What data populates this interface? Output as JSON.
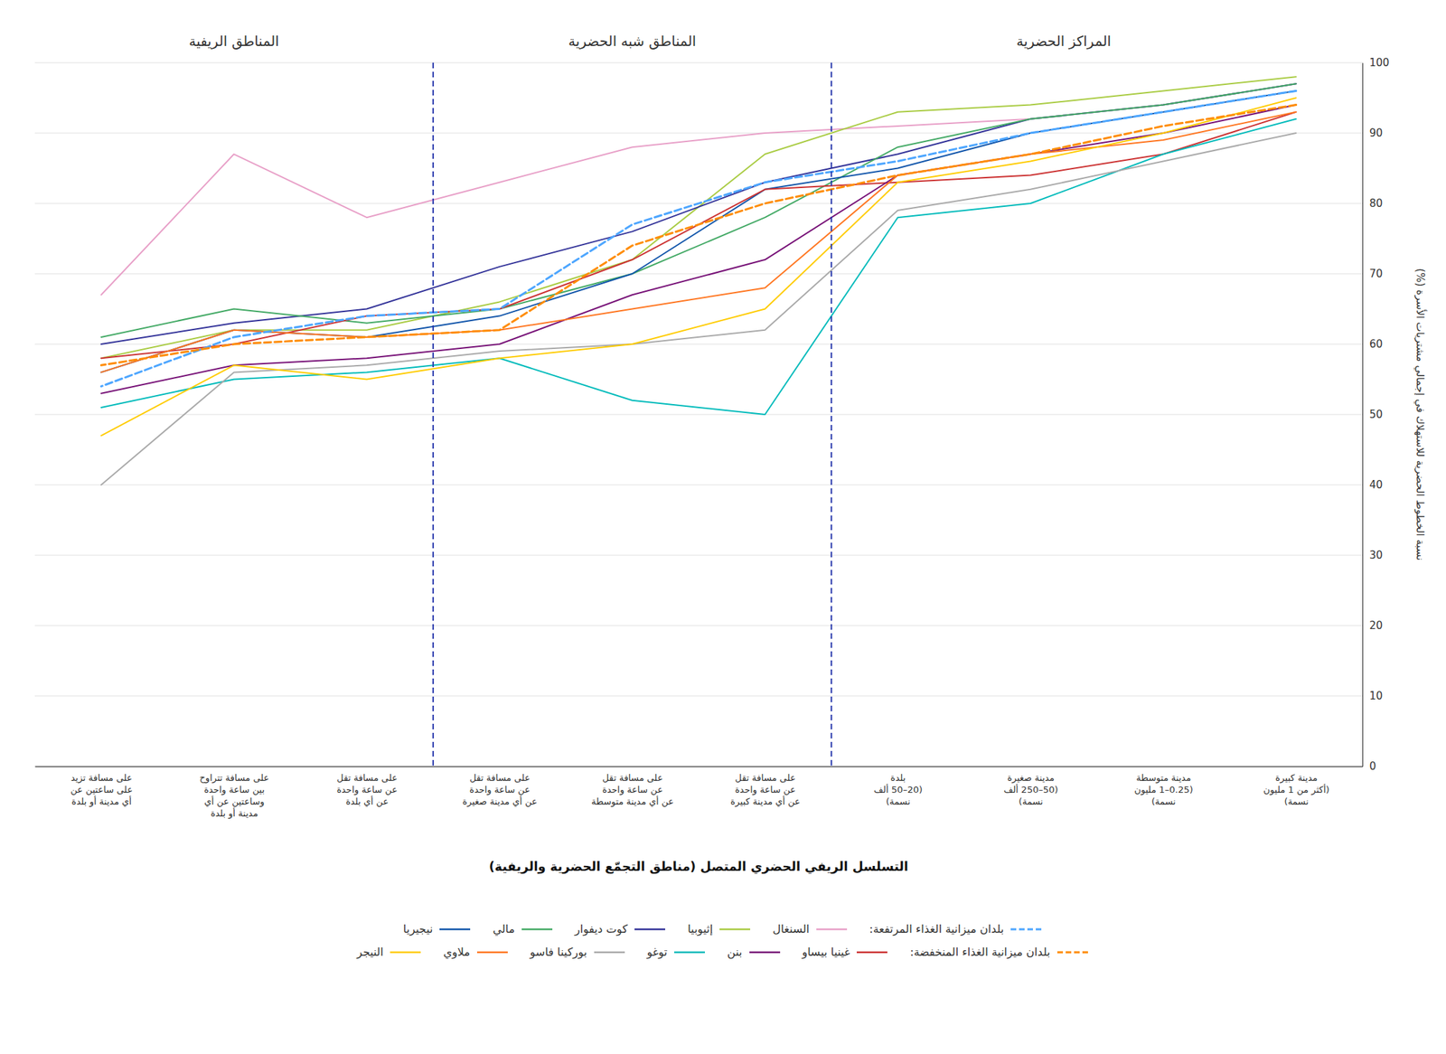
{
  "chart_data": {
    "type": "line",
    "xlabel": "التسلسل الريفي الحضري المتصل  (مناطق التجمّع الحضرية والريفية)",
    "ylabel": "نسبة الخطوط الحضرية للاستهلاك في إجمالي مشتريات الأسرة (%)",
    "categories": [
      "مدينة كبيرة\n(أكثر من 1 مليون\nنسمة)",
      "مدينة متوسطة\n(0.25–1 مليون\nنسمة)",
      "مدينة صغيرة\n(50–250 ألف\nنسمة)",
      "بلدة\n(20–50 ألف\nنسمة)",
      "على مسافة تقل\nعن ساعة واحدة\nعن أي مدينة كبيرة",
      "على مسافة تقل\nعن ساعة واحدة\nعن أي مدينة متوسطة",
      "على مسافة تقل\nعن ساعة واحدة\nعن أي مدينة صغيرة",
      "على مسافة تقل\nعن ساعة واحدة\nعن أي بلدة",
      "على مسافة تتراوح\nبين ساعة واحدة\nوساعتين عن أي\nمدينة أو بلدة",
      "على مسافة تزيد\nعلى ساعتين عن\nأي مدينة أو بلدة"
    ],
    "series": [
      {
        "name": "بلدان ميزانية الغذاء المرتفعة:",
        "color": "#4DA6FF",
        "line_style": "dashed",
        "values": [
          96,
          93,
          90,
          86,
          83,
          77,
          65,
          64,
          61,
          54
        ]
      },
      {
        "name": "السنغال",
        "color": "#E8A0C8",
        "line_style": "solid",
        "values": [
          97,
          94,
          92,
          91,
          90,
          88,
          83,
          78,
          87,
          67
        ]
      },
      {
        "name": "إثيوبيا",
        "color": "#AACC44",
        "line_style": "solid",
        "values": [
          98,
          96,
          94,
          93,
          87,
          72,
          66,
          62,
          62,
          58
        ]
      },
      {
        "name": "كوت ديفوار",
        "color": "#333399",
        "line_style": "solid",
        "values": [
          97,
          94,
          92,
          87,
          83,
          76,
          71,
          65,
          63,
          60
        ]
      },
      {
        "name": "مالي",
        "color": "#44AA66",
        "line_style": "solid",
        "values": [
          97,
          94,
          92,
          88,
          78,
          70,
          65,
          63,
          65,
          61
        ]
      },
      {
        "name": "نيجيريا",
        "color": "#1155AA",
        "line_style": "solid",
        "values": [
          96,
          93,
          90,
          85,
          82,
          70,
          64,
          61,
          62,
          56
        ]
      },
      {
        "name": "بلدان ميزانية الغذاء المنخفضة:",
        "color": "#FF8C00",
        "line_style": "dashed",
        "values": [
          94,
          91,
          87,
          84,
          80,
          74,
          62,
          61,
          60,
          57
        ]
      },
      {
        "name": "غينيا بيساو",
        "color": "#CC3333",
        "line_style": "solid",
        "values": [
          93,
          87,
          84,
          83,
          82,
          72,
          65,
          64,
          60,
          58
        ]
      },
      {
        "name": "بنن",
        "color": "#771177",
        "line_style": "solid",
        "values": [
          94,
          90,
          87,
          84,
          72,
          67,
          60,
          58,
          57,
          53
        ]
      },
      {
        "name": "توغو",
        "color": "#00BBBB",
        "line_style": "solid",
        "values": [
          92,
          87,
          80,
          78,
          50,
          52,
          58,
          56,
          55,
          51
        ]
      },
      {
        "name": "بوركينا فاسو",
        "color": "#AAAAAA",
        "line_style": "solid",
        "values": [
          90,
          86,
          82,
          79,
          62,
          60,
          59,
          57,
          56,
          40
        ]
      },
      {
        "name": "ملاوي",
        "color": "#FF7722",
        "line_style": "solid",
        "values": [
          93,
          89,
          87,
          84,
          68,
          65,
          62,
          61,
          62,
          56
        ]
      },
      {
        "name": "النيجر",
        "color": "#FFCC00",
        "line_style": "solid",
        "values": [
          95,
          90,
          86,
          83,
          65,
          60,
          58,
          55,
          57,
          47
        ]
      }
    ],
    "annotations": [
      {
        "text": "المراكز الحضرية",
        "x": 1.75
      },
      {
        "text": "المناطق شبه الحضرية",
        "x": 5.0
      },
      {
        "text": "المناطق الريفية",
        "x": 8.0
      }
    ],
    "vlines": [
      3.5,
      6.5
    ],
    "ylim": [
      0,
      100
    ],
    "yticks": [
      0,
      10,
      20,
      30,
      40,
      50,
      60,
      70,
      80,
      90,
      100
    ],
    "grid": true,
    "legend": "bottom"
  }
}
